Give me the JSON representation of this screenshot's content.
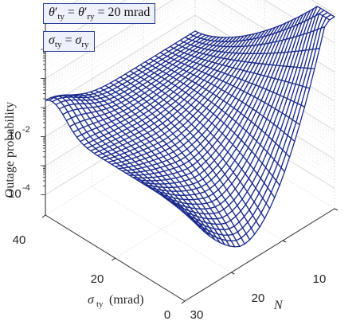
{
  "chart_data": {
    "type": "surface",
    "zlabel": "Outage probability",
    "xlabel_var": "σ",
    "xlabel_sub": "ty",
    "xlabel_unit": "(mrad)",
    "ylabel": "N",
    "x_ticks": [
      "40",
      "20",
      "0"
    ],
    "y_ticks": [
      "10",
      "20",
      "30"
    ],
    "z_ticks": [
      {
        "base": "10",
        "exp": "-2"
      },
      {
        "base": "10",
        "exp": "-4"
      }
    ],
    "x_range": [
      0,
      40
    ],
    "y_range": [
      1,
      30
    ],
    "z_scale": "log",
    "grid": true,
    "mesh_color": "#1a2a8c",
    "annotations": [
      {
        "text": "θ′ty = θ′ry = 20 mrad"
      },
      {
        "text": "σty = σry"
      }
    ]
  }
}
